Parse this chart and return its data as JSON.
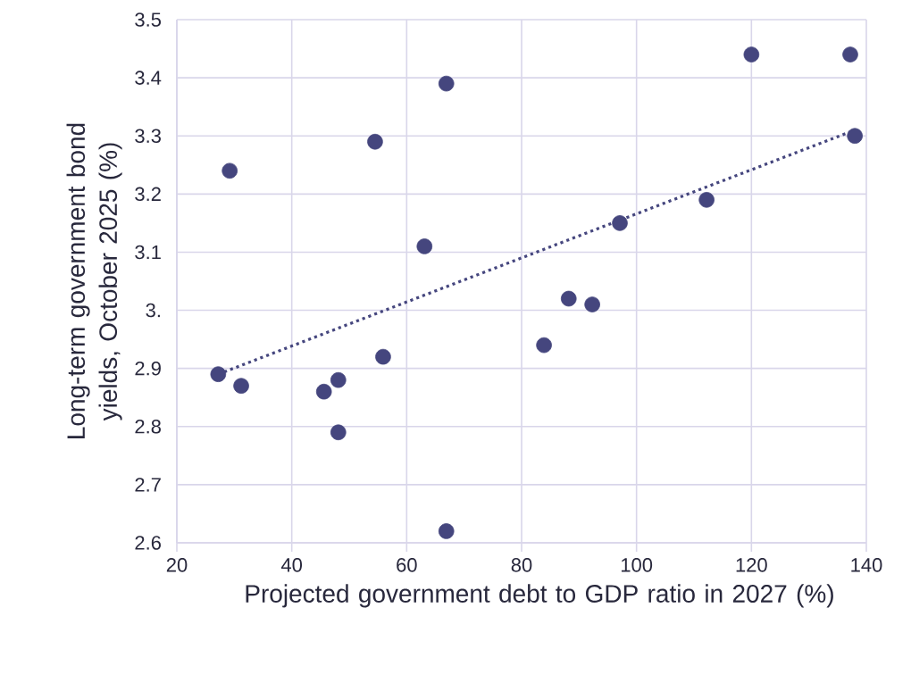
{
  "chart_data": {
    "type": "scatter",
    "xlabel": "Projected government debt to GDP ratio in 2027 (%)",
    "ylabel": "Long-term government bond yields, October 2025 (%)",
    "xlim": [
      20,
      140
    ],
    "xticks": [
      20,
      40,
      60,
      80,
      100,
      120,
      140
    ],
    "ylim": [
      2.6,
      3.5
    ],
    "yticks": [
      2.6,
      2.7,
      2.8,
      2.9,
      {
        "value": 3.0,
        "label": "3."
      },
      3.1,
      3.2,
      3.3,
      3.4,
      3.5
    ],
    "grid": true,
    "series": [
      {
        "marker": "circle",
        "color": "#45467e",
        "x": [
          27.2,
          29.2,
          31.2,
          45.6,
          48.1,
          48.1,
          54.5,
          55.9,
          63.1,
          66.9,
          66.9,
          83.9,
          88.2,
          92.3,
          97.1,
          112.2,
          120.0,
          137.2,
          138.0
        ],
        "values": [
          2.89,
          3.24,
          2.87,
          2.86,
          2.88,
          2.79,
          3.29,
          2.92,
          3.11,
          3.39,
          2.62,
          2.94,
          3.02,
          3.01,
          3.15,
          3.19,
          3.44,
          3.44,
          3.3
        ]
      },
      {
        "type": "line",
        "marker": "none",
        "line_style": "dotted",
        "color": "#45467e",
        "x": [
          27.2,
          138.0
        ],
        "values": [
          2.89,
          3.31
        ]
      }
    ]
  }
}
